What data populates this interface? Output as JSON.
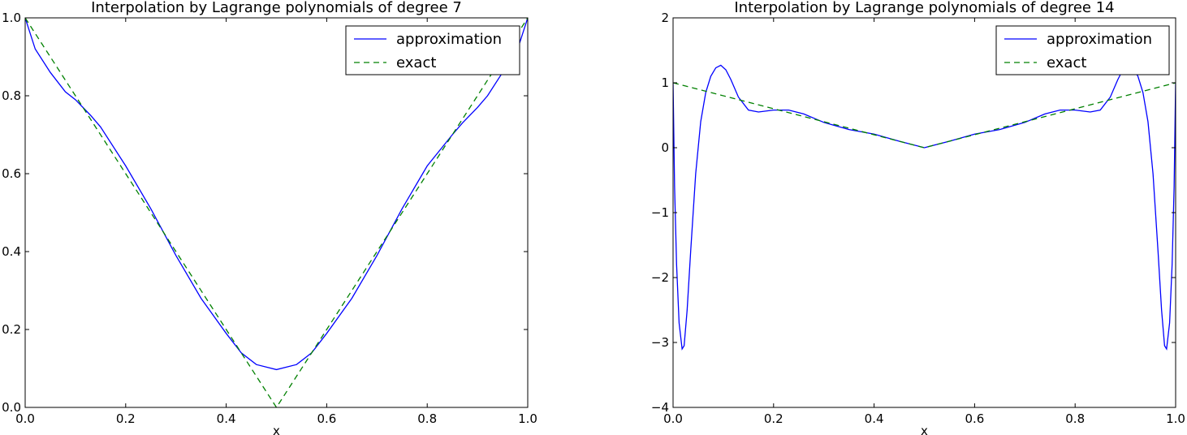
{
  "chart_data": [
    {
      "type": "line",
      "title": "Interpolation by Lagrange polynomials of degree 7",
      "xlabel": "x",
      "ylabel": "",
      "xlim": [
        0.0,
        1.0
      ],
      "ylim": [
        0.0,
        1.0
      ],
      "xticks": [
        "0.0",
        "0.2",
        "0.4",
        "0.6",
        "0.8",
        "1.0"
      ],
      "yticks": [
        "0.0",
        "0.2",
        "0.4",
        "0.6",
        "0.8",
        "1.0"
      ],
      "xtick_values": [
        0.0,
        0.2,
        0.4,
        0.6,
        0.8,
        1.0
      ],
      "ytick_values": [
        0.0,
        0.2,
        0.4,
        0.6,
        0.8,
        1.0
      ],
      "grid": false,
      "legend_position": "top-right",
      "series": [
        {
          "name": "approximation",
          "color": "#0000ff",
          "style": "solid",
          "x": [
            0.0,
            0.02,
            0.05,
            0.08,
            0.1,
            0.13,
            0.15,
            0.2,
            0.25,
            0.3,
            0.35,
            0.4,
            0.43,
            0.46,
            0.5,
            0.54,
            0.57,
            0.6,
            0.65,
            0.7,
            0.75,
            0.8,
            0.85,
            0.87,
            0.9,
            0.92,
            0.95,
            0.98,
            1.0
          ],
          "y": [
            1.0,
            0.92,
            0.86,
            0.81,
            0.79,
            0.75,
            0.72,
            0.62,
            0.51,
            0.39,
            0.28,
            0.19,
            0.14,
            0.11,
            0.097,
            0.11,
            0.14,
            0.19,
            0.28,
            0.39,
            0.51,
            0.62,
            0.7,
            0.73,
            0.77,
            0.8,
            0.86,
            0.92,
            1.0
          ]
        },
        {
          "name": "exact",
          "color": "#008000",
          "style": "dashed",
          "x": [
            0.0,
            0.5,
            1.0
          ],
          "y": [
            1.0,
            0.0,
            1.0
          ]
        }
      ]
    },
    {
      "type": "line",
      "title": "Interpolation by Lagrange polynomials of degree 14",
      "xlabel": "x",
      "ylabel": "",
      "xlim": [
        0.0,
        1.0
      ],
      "ylim": [
        -4,
        2
      ],
      "xticks": [
        "0.0",
        "0.2",
        "0.4",
        "0.6",
        "0.8",
        "1.0"
      ],
      "yticks": [
        "−4",
        "−3",
        "−2",
        "−1",
        "0",
        "1",
        "2"
      ],
      "xtick_values": [
        0.0,
        0.2,
        0.4,
        0.6,
        0.8,
        1.0
      ],
      "ytick_values": [
        -4,
        -3,
        -2,
        -1,
        0,
        1,
        2
      ],
      "grid": false,
      "legend_position": "top-right",
      "series": [
        {
          "name": "approximation",
          "color": "#0000ff",
          "style": "solid",
          "x": [
            0.0,
            0.003,
            0.007,
            0.012,
            0.018,
            0.022,
            0.028,
            0.035,
            0.045,
            0.055,
            0.065,
            0.075,
            0.085,
            0.095,
            0.105,
            0.115,
            0.13,
            0.15,
            0.17,
            0.2,
            0.23,
            0.26,
            0.3,
            0.35,
            0.4,
            0.45,
            0.5,
            0.55,
            0.6,
            0.65,
            0.7,
            0.74,
            0.77,
            0.8,
            0.83,
            0.85,
            0.87,
            0.885,
            0.895,
            0.905,
            0.915,
            0.925,
            0.935,
            0.945,
            0.955,
            0.965,
            0.972,
            0.978,
            0.982,
            0.988,
            0.993,
            0.997,
            1.0
          ],
          "y": [
            1.0,
            -0.6,
            -1.8,
            -2.7,
            -3.1,
            -3.05,
            -2.5,
            -1.6,
            -0.4,
            0.4,
            0.85,
            1.1,
            1.23,
            1.27,
            1.2,
            1.05,
            0.78,
            0.58,
            0.55,
            0.58,
            0.58,
            0.52,
            0.39,
            0.28,
            0.21,
            0.1,
            0.0,
            0.1,
            0.21,
            0.28,
            0.39,
            0.52,
            0.58,
            0.58,
            0.55,
            0.58,
            0.78,
            1.05,
            1.2,
            1.27,
            1.23,
            1.1,
            0.85,
            0.4,
            -0.4,
            -1.6,
            -2.5,
            -3.05,
            -3.1,
            -2.7,
            -1.8,
            -0.6,
            1.0
          ]
        },
        {
          "name": "exact",
          "color": "#008000",
          "style": "dashed",
          "x": [
            0.0,
            0.5,
            1.0
          ],
          "y": [
            1.0,
            0.0,
            1.0
          ]
        }
      ]
    }
  ]
}
